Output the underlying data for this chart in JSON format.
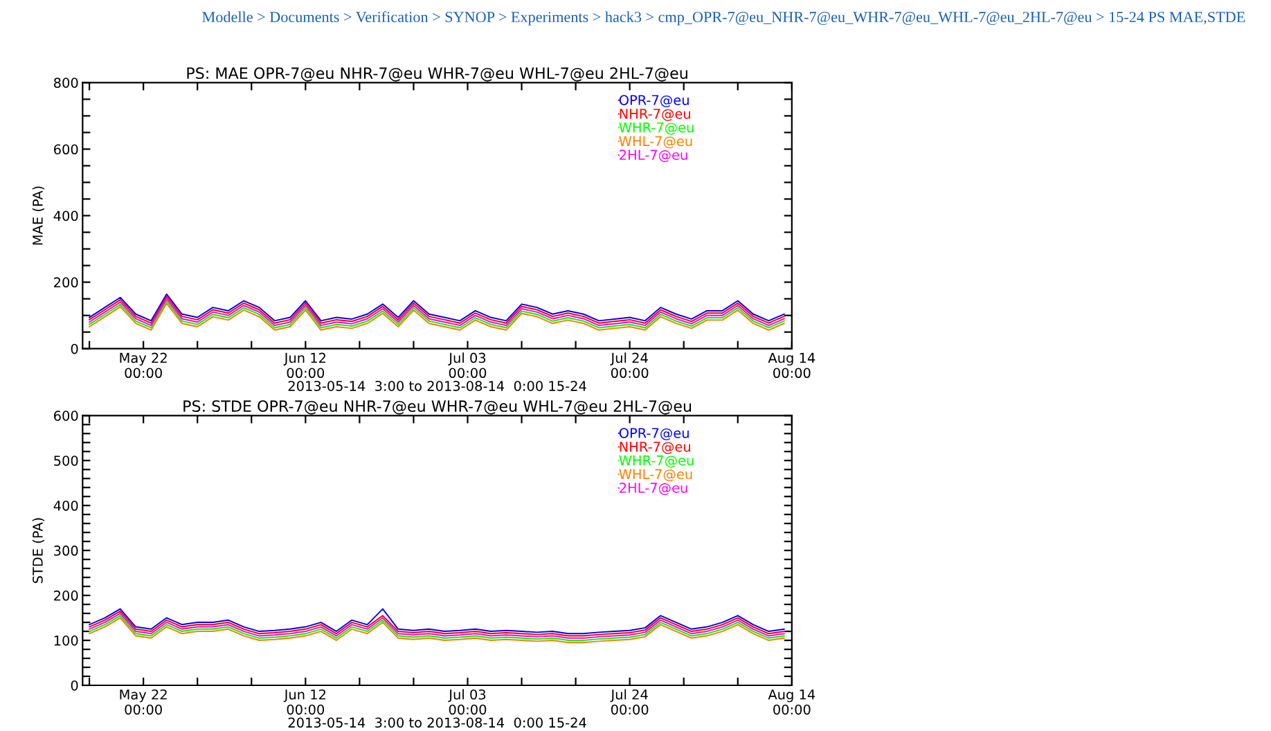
{
  "chart_data": [
    {
      "type": "line",
      "title": "PS: MAE OPR-7@eu NHR-7@eu WHR-7@eu WHL-7@eu 2HL-7@eu",
      "ylabel": "MAE (PA)",
      "xlabel": "2013-05-14  3:00 to 2013-08-14  0:00 15-24",
      "annotations": [
        "Modelle > Documents > Verification > SYNOP > Experiments > hack3 > cmp_OPR-7@eu_NHR-7@eu_WHR-7@eu_WHL-7@eu_2HL-7@eu > 15-24 PS MAE,STDE"
      ],
      "x": [
        "2013-05-15",
        "2013-05-17",
        "2013-05-19",
        "2013-05-21",
        "2013-05-23",
        "2013-05-25",
        "2013-05-27",
        "2013-05-29",
        "2013-05-31",
        "2013-06-02",
        "2013-06-04",
        "2013-06-06",
        "2013-06-08",
        "2013-06-10",
        "2013-06-12",
        "2013-06-14",
        "2013-06-16",
        "2013-06-18",
        "2013-06-20",
        "2013-06-22",
        "2013-06-24",
        "2013-06-26",
        "2013-06-28",
        "2013-06-30",
        "2013-07-02",
        "2013-07-04",
        "2013-07-06",
        "2013-07-08",
        "2013-07-10",
        "2013-07-12",
        "2013-07-14",
        "2013-07-16",
        "2013-07-18",
        "2013-07-20",
        "2013-07-22",
        "2013-07-24",
        "2013-07-26",
        "2013-07-28",
        "2013-07-30",
        "2013-08-01",
        "2013-08-03",
        "2013-08-05",
        "2013-08-07",
        "2013-08-09",
        "2013-08-11",
        "2013-08-13"
      ],
      "xlim": [
        "2013-05-14T03:00",
        "2013-08-14T00:00"
      ],
      "xticks": [
        {
          "value": "2013-05-15",
          "label": null
        },
        {
          "value": "2013-05-22",
          "label": "May 22\n00:00"
        },
        {
          "value": "2013-05-29",
          "label": null
        },
        {
          "value": "2013-06-05",
          "label": null
        },
        {
          "value": "2013-06-12",
          "label": "Jun 12\n00:00"
        },
        {
          "value": "2013-06-19",
          "label": null
        },
        {
          "value": "2013-06-26",
          "label": null
        },
        {
          "value": "2013-07-03",
          "label": "Jul 03\n00:00"
        },
        {
          "value": "2013-07-10",
          "label": null
        },
        {
          "value": "2013-07-17",
          "label": null
        },
        {
          "value": "2013-07-24",
          "label": "Jul 24\n00:00"
        },
        {
          "value": "2013-07-31",
          "label": null
        },
        {
          "value": "2013-08-07",
          "label": null
        },
        {
          "value": "2013-08-14",
          "label": "Aug 14\n00:00"
        }
      ],
      "ylim": [
        0,
        800
      ],
      "yticks": [
        0,
        {
          "value": 50,
          "label": null
        },
        {
          "value": 100,
          "label": null
        },
        {
          "value": 150,
          "label": null
        },
        200,
        {
          "value": 250,
          "label": null
        },
        {
          "value": 300,
          "label": null
        },
        {
          "value": 350,
          "label": null
        },
        400,
        {
          "value": 450,
          "label": null
        },
        {
          "value": 500,
          "label": null
        },
        {
          "value": 550,
          "label": null
        },
        600,
        {
          "value": 650,
          "label": null
        },
        {
          "value": 700,
          "label": null
        },
        {
          "value": 750,
          "label": null
        },
        800
      ],
      "legend": "top right",
      "grid": false,
      "series": [
        {
          "name": "OPR-7@eu",
          "color": "#0000ff",
          "values": [
            94,
            124,
            154,
            104,
            84,
            164,
            104,
            94,
            124,
            114,
            144,
            124,
            84,
            94,
            144,
            84,
            94,
            89,
            104,
            134,
            94,
            144,
            104,
            94,
            84,
            114,
            94,
            84,
            134,
            124,
            104,
            114,
            104,
            84,
            89,
            94,
            84,
            124,
            104,
            89,
            114,
            114,
            144,
            104,
            84,
            104
          ]
        },
        {
          "name": "NHR-7@eu",
          "color": "#ff0000",
          "values": [
            87,
            117,
            147,
            97,
            77,
            157,
            97,
            87,
            117,
            107,
            137,
            117,
            77,
            87,
            137,
            77,
            87,
            82,
            97,
            127,
            87,
            137,
            97,
            87,
            77,
            107,
            87,
            77,
            127,
            117,
            97,
            107,
            97,
            77,
            82,
            87,
            77,
            117,
            97,
            82,
            107,
            107,
            137,
            97,
            77,
            97
          ]
        },
        {
          "name": "WHR-7@eu",
          "color": "#00ff00",
          "values": [
            73,
            103,
            133,
            83,
            63,
            143,
            83,
            73,
            103,
            93,
            123,
            103,
            63,
            73,
            123,
            63,
            73,
            68,
            83,
            113,
            73,
            123,
            83,
            73,
            63,
            93,
            73,
            63,
            113,
            103,
            83,
            93,
            83,
            63,
            68,
            73,
            63,
            103,
            83,
            68,
            93,
            93,
            123,
            83,
            63,
            83
          ]
        },
        {
          "name": "WHL-7@eu",
          "color": "#ff8000",
          "values": [
            66,
            96,
            126,
            76,
            56,
            136,
            76,
            66,
            96,
            86,
            116,
            96,
            56,
            66,
            116,
            56,
            66,
            61,
            76,
            106,
            66,
            116,
            76,
            66,
            56,
            86,
            66,
            56,
            106,
            96,
            76,
            86,
            76,
            56,
            61,
            66,
            56,
            96,
            76,
            61,
            86,
            86,
            116,
            76,
            56,
            76
          ]
        },
        {
          "name": "2HL-7@eu",
          "color": "#ff00ff",
          "values": [
            80,
            110,
            140,
            90,
            70,
            150,
            90,
            80,
            110,
            100,
            130,
            110,
            70,
            80,
            130,
            70,
            80,
            75,
            90,
            120,
            80,
            130,
            90,
            80,
            70,
            100,
            80,
            70,
            120,
            110,
            90,
            100,
            90,
            70,
            75,
            80,
            70,
            110,
            90,
            75,
            100,
            100,
            130,
            90,
            70,
            90
          ]
        }
      ]
    },
    {
      "type": "line",
      "title": "PS: STDE OPR-7@eu NHR-7@eu WHR-7@eu WHL-7@eu 2HL-7@eu",
      "ylabel": "STDE (PA)",
      "xlabel": "2013-05-14  3:00 to 2013-08-14  0:00 15-24",
      "x": [
        "2013-05-15",
        "2013-05-17",
        "2013-05-19",
        "2013-05-21",
        "2013-05-23",
        "2013-05-25",
        "2013-05-27",
        "2013-05-29",
        "2013-05-31",
        "2013-06-02",
        "2013-06-04",
        "2013-06-06",
        "2013-06-08",
        "2013-06-10",
        "2013-06-12",
        "2013-06-14",
        "2013-06-16",
        "2013-06-18",
        "2013-06-20",
        "2013-06-22",
        "2013-06-24",
        "2013-06-26",
        "2013-06-28",
        "2013-06-30",
        "2013-07-02",
        "2013-07-04",
        "2013-07-06",
        "2013-07-08",
        "2013-07-10",
        "2013-07-12",
        "2013-07-14",
        "2013-07-16",
        "2013-07-18",
        "2013-07-20",
        "2013-07-22",
        "2013-07-24",
        "2013-07-26",
        "2013-07-28",
        "2013-07-30",
        "2013-08-01",
        "2013-08-03",
        "2013-08-05",
        "2013-08-07",
        "2013-08-09",
        "2013-08-11",
        "2013-08-13"
      ],
      "xlim": [
        "2013-05-14T03:00",
        "2013-08-14T00:00"
      ],
      "xticks": [
        {
          "value": "2013-05-15",
          "label": null
        },
        {
          "value": "2013-05-22",
          "label": "May 22\n00:00"
        },
        {
          "value": "2013-05-29",
          "label": null
        },
        {
          "value": "2013-06-05",
          "label": null
        },
        {
          "value": "2013-06-12",
          "label": "Jun 12\n00:00"
        },
        {
          "value": "2013-06-19",
          "label": null
        },
        {
          "value": "2013-06-26",
          "label": null
        },
        {
          "value": "2013-07-03",
          "label": "Jul 03\n00:00"
        },
        {
          "value": "2013-07-10",
          "label": null
        },
        {
          "value": "2013-07-17",
          "label": null
        },
        {
          "value": "2013-07-24",
          "label": "Jul 24\n00:00"
        },
        {
          "value": "2013-07-31",
          "label": null
        },
        {
          "value": "2013-08-07",
          "label": null
        },
        {
          "value": "2013-08-14",
          "label": "Aug 14\n00:00"
        }
      ],
      "ylim": [
        0,
        600
      ],
      "yticks": [
        0,
        {
          "value": 20,
          "label": null
        },
        {
          "value": 40,
          "label": null
        },
        {
          "value": 60,
          "label": null
        },
        {
          "value": 80,
          "label": null
        },
        100,
        {
          "value": 120,
          "label": null
        },
        {
          "value": 140,
          "label": null
        },
        {
          "value": 160,
          "label": null
        },
        {
          "value": 180,
          "label": null
        },
        200,
        {
          "value": 220,
          "label": null
        },
        {
          "value": 240,
          "label": null
        },
        {
          "value": 260,
          "label": null
        },
        {
          "value": 280,
          "label": null
        },
        300,
        {
          "value": 320,
          "label": null
        },
        {
          "value": 340,
          "label": null
        },
        {
          "value": 360,
          "label": null
        },
        {
          "value": 380,
          "label": null
        },
        400,
        {
          "value": 420,
          "label": null
        },
        {
          "value": 440,
          "label": null
        },
        {
          "value": 460,
          "label": null
        },
        {
          "value": 480,
          "label": null
        },
        500,
        {
          "value": 520,
          "label": null
        },
        {
          "value": 540,
          "label": null
        },
        {
          "value": 560,
          "label": null
        },
        {
          "value": 580,
          "label": null
        },
        600
      ],
      "legend": "top right",
      "grid": false,
      "series": [
        {
          "name": "OPR-7@eu",
          "color": "#0000ff",
          "values": [
            135,
            150,
            170,
            130,
            125,
            150,
            135,
            140,
            140,
            145,
            130,
            120,
            122,
            125,
            130,
            140,
            120,
            145,
            135,
            170,
            125,
            122,
            125,
            120,
            122,
            125,
            120,
            122,
            120,
            118,
            120,
            115,
            115,
            118,
            120,
            122,
            128,
            155,
            140,
            125,
            130,
            140,
            155,
            135,
            120,
            125
          ]
        },
        {
          "name": "NHR-7@eu",
          "color": "#ff0000",
          "values": [
            130,
            145,
            165,
            125,
            120,
            145,
            130,
            135,
            135,
            140,
            125,
            115,
            117,
            120,
            125,
            135,
            115,
            140,
            130,
            155,
            120,
            117,
            120,
            115,
            117,
            120,
            115,
            117,
            115,
            113,
            115,
            110,
            110,
            113,
            115,
            117,
            123,
            150,
            135,
            120,
            125,
            135,
            150,
            130,
            115,
            120
          ]
        },
        {
          "name": "WHR-7@eu",
          "color": "#00ff00",
          "values": [
            120,
            135,
            155,
            115,
            110,
            135,
            120,
            125,
            125,
            130,
            115,
            105,
            107,
            110,
            115,
            125,
            105,
            130,
            120,
            145,
            110,
            107,
            110,
            105,
            107,
            110,
            105,
            107,
            105,
            103,
            105,
            100,
            100,
            103,
            105,
            107,
            113,
            140,
            125,
            110,
            115,
            125,
            140,
            120,
            105,
            110
          ]
        },
        {
          "name": "WHL-7@eu",
          "color": "#ff8000",
          "values": [
            115,
            130,
            150,
            110,
            105,
            130,
            115,
            120,
            120,
            125,
            110,
            100,
            102,
            105,
            110,
            120,
            100,
            125,
            115,
            140,
            105,
            102,
            105,
            100,
            102,
            105,
            100,
            102,
            100,
            98,
            100,
            95,
            95,
            98,
            100,
            102,
            108,
            135,
            120,
            105,
            110,
            120,
            135,
            115,
            100,
            105
          ]
        },
        {
          "name": "2HL-7@eu",
          "color": "#ff00ff",
          "values": [
            125,
            140,
            160,
            120,
            115,
            140,
            125,
            130,
            130,
            135,
            120,
            110,
            112,
            115,
            120,
            130,
            110,
            135,
            125,
            150,
            115,
            112,
            115,
            110,
            112,
            115,
            110,
            112,
            110,
            108,
            110,
            105,
            105,
            108,
            110,
            112,
            118,
            145,
            130,
            115,
            120,
            130,
            145,
            125,
            110,
            115
          ]
        }
      ]
    }
  ]
}
